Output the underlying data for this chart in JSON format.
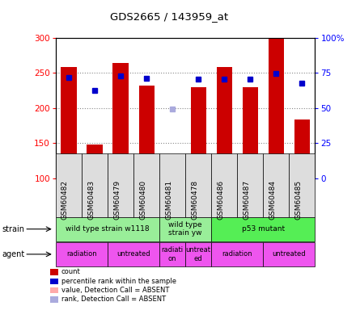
{
  "title": "GDS2665 / 143959_at",
  "samples": [
    "GSM60482",
    "GSM60483",
    "GSM60479",
    "GSM60480",
    "GSM60481",
    "GSM60478",
    "GSM60486",
    "GSM60487",
    "GSM60484",
    "GSM60485"
  ],
  "bar_values": [
    258,
    148,
    264,
    232,
    103,
    229,
    258,
    229,
    300,
    183
  ],
  "bar_absent": [
    false,
    false,
    false,
    false,
    true,
    false,
    false,
    false,
    false,
    false
  ],
  "rank_values": [
    243,
    225,
    246,
    242,
    null,
    241,
    241,
    241,
    249,
    235
  ],
  "rank_absent": [
    false,
    false,
    false,
    false,
    true,
    false,
    false,
    false,
    false,
    false
  ],
  "rank_absent_value": 198,
  "ylim_left": [
    100,
    300
  ],
  "ylim_right": [
    0,
    100
  ],
  "yticks_left": [
    100,
    150,
    200,
    250,
    300
  ],
  "yticks_right": [
    0,
    25,
    50,
    75,
    100
  ],
  "bar_color": "#cc0000",
  "bar_absent_color": "#ffaaaa",
  "rank_color": "#0000cc",
  "rank_absent_color": "#aaaadd",
  "grid_dotted_color": "#888888",
  "strain_groups": [
    {
      "label": "wild type strain w1118",
      "start": 0,
      "end": 4,
      "color": "#99ee99"
    },
    {
      "label": "wild type\nstrain yw",
      "start": 4,
      "end": 6,
      "color": "#99ee99"
    },
    {
      "label": "p53 mutant",
      "start": 6,
      "end": 10,
      "color": "#55ee55"
    }
  ],
  "agent_groups": [
    {
      "label": "radiation",
      "start": 0,
      "end": 2,
      "color": "#ee55ee"
    },
    {
      "label": "untreated",
      "start": 2,
      "end": 4,
      "color": "#ee55ee"
    },
    {
      "label": "radiati\non",
      "start": 4,
      "end": 5,
      "color": "#ee55ee"
    },
    {
      "label": "untreat\ned",
      "start": 5,
      "end": 6,
      "color": "#ee55ee"
    },
    {
      "label": "radiation",
      "start": 6,
      "end": 8,
      "color": "#ee55ee"
    },
    {
      "label": "untreated",
      "start": 8,
      "end": 10,
      "color": "#ee55ee"
    }
  ],
  "legend_items": [
    {
      "label": "count",
      "color": "#cc0000"
    },
    {
      "label": "percentile rank within the sample",
      "color": "#0000cc"
    },
    {
      "label": "value, Detection Call = ABSENT",
      "color": "#ffaaaa"
    },
    {
      "label": "rank, Detection Call = ABSENT",
      "color": "#aaaadd"
    }
  ]
}
